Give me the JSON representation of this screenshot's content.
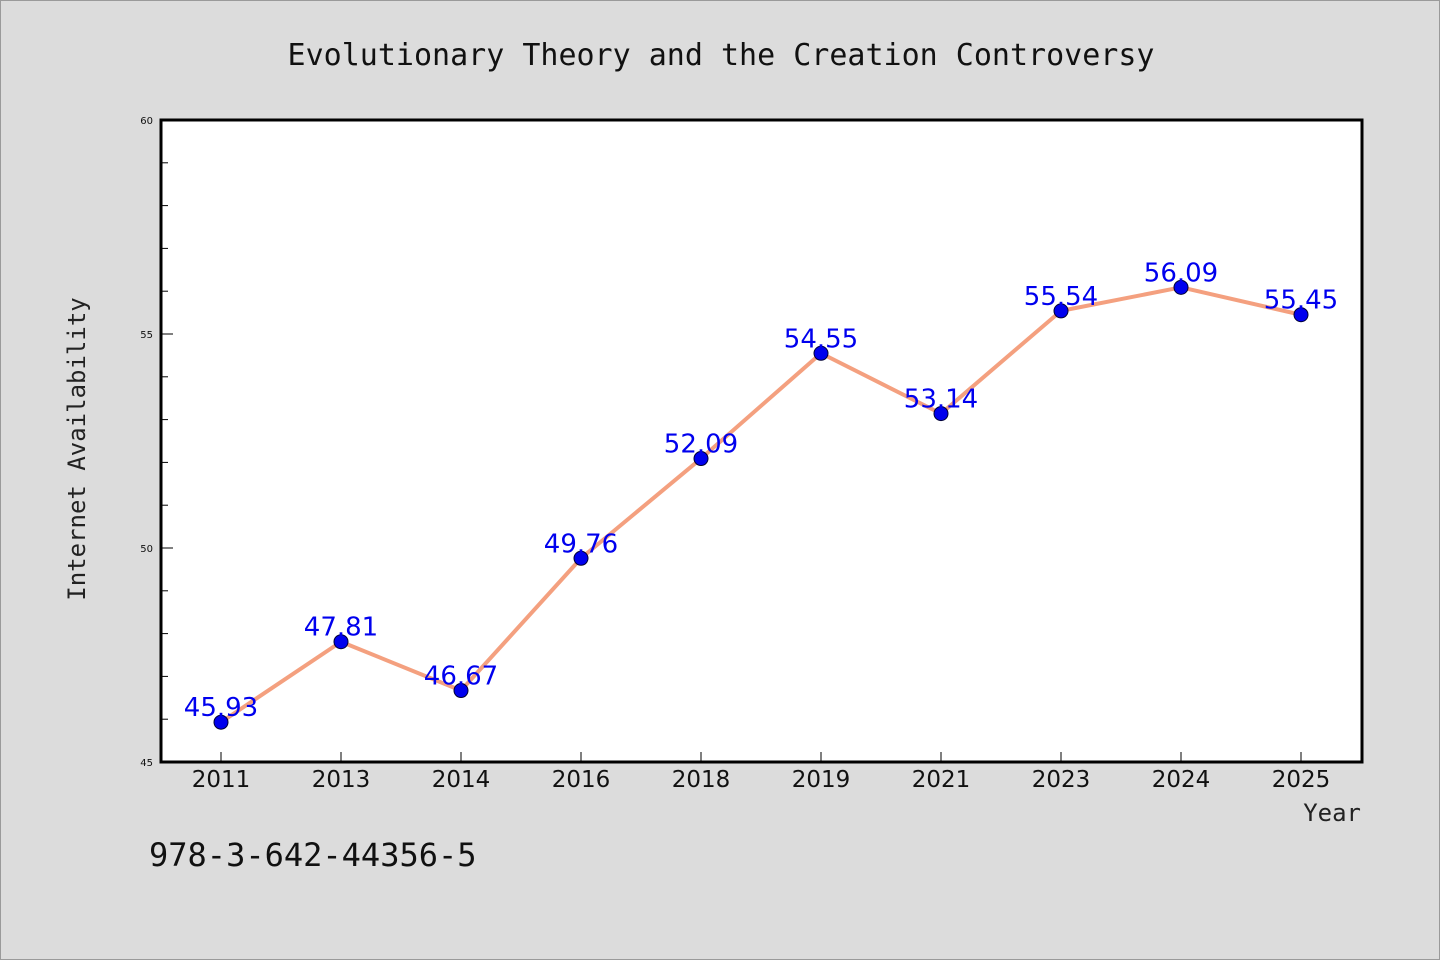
{
  "chart_data": {
    "type": "line",
    "title": "Evolutionary Theory and the Creation Controversy",
    "xlabel": "Year",
    "ylabel": "Internet Availability",
    "categories": [
      "2011",
      "2013",
      "2014",
      "2016",
      "2018",
      "2019",
      "2021",
      "2023",
      "2024",
      "2025"
    ],
    "series": [
      {
        "values": [
          45.93,
          47.81,
          46.67,
          49.76,
          52.09,
          54.55,
          53.14,
          55.54,
          56.09,
          55.45
        ],
        "labels": [
          "45.93",
          "47.81",
          "46.67",
          "49.76",
          "52.09",
          "54.55",
          "53.14",
          "55.54",
          "56.09",
          "55.45"
        ]
      }
    ],
    "ylim": [
      45,
      60
    ],
    "yticks": [
      45,
      50,
      55,
      60
    ],
    "ytick_labels": [
      "45",
      "50",
      "55",
      "60"
    ],
    "grid": false,
    "line_color": "#f4a07f",
    "marker_color": "#0000ee",
    "label_color": "#0000ee"
  },
  "footer": {
    "isbn": "978-3-642-44356-5"
  },
  "colors": {
    "background": "#dcdcdc",
    "plot_background": "#ffffff"
  }
}
